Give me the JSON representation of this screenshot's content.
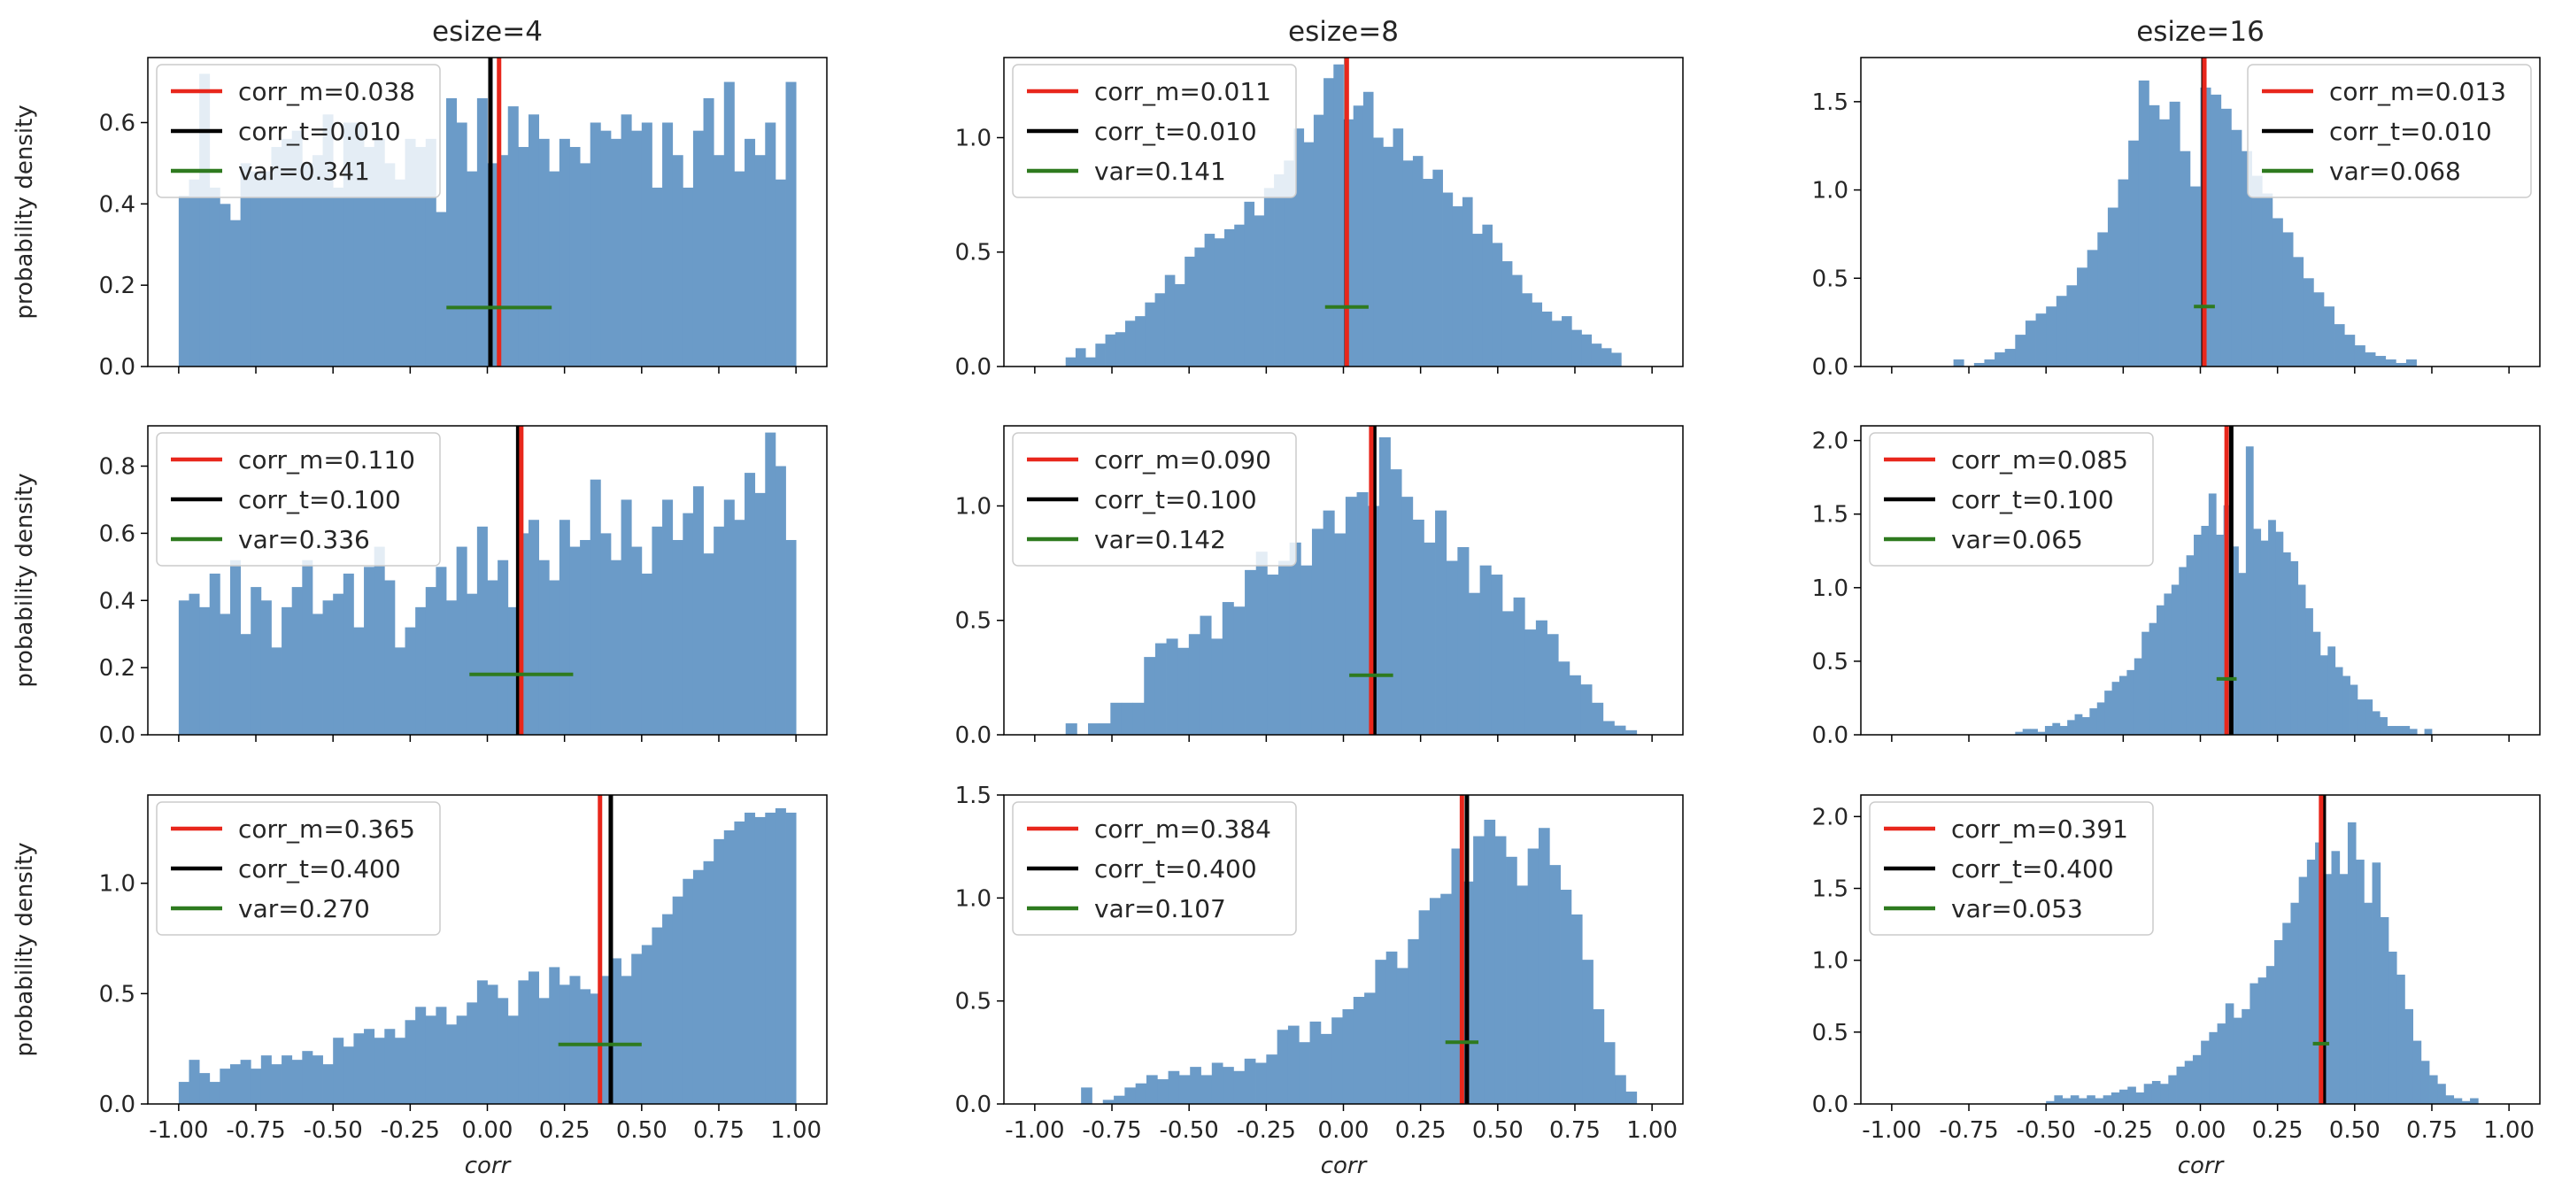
{
  "chart_data": {
    "type": "bar",
    "layout": "3x3 histogram grid, shared x axis per column",
    "columns": [
      "esize=4",
      "esize=8",
      "esize=16"
    ],
    "ylabel": "probability density",
    "xlabel": "corr",
    "xlim": [
      -1.1,
      1.1
    ],
    "x_ticks": [
      -1.0,
      -0.75,
      -0.5,
      -0.25,
      0.0,
      0.25,
      0.5,
      0.75,
      1.0
    ],
    "x_tick_labels": [
      "-1.00",
      "-0.75",
      "-0.50",
      "-0.25",
      "0.00",
      "0.25",
      "0.50",
      "0.75",
      "1.00"
    ],
    "colors": {
      "bars": "#6b9bc8",
      "corr_m": "#e8271c",
      "corr_t": "#000000",
      "var": "#2e7a1f"
    },
    "panels": [
      {
        "row": 0,
        "col": 0,
        "show_xticklabels": false,
        "show_ylabel": true,
        "ylim": [
          0,
          0.76
        ],
        "y_ticks": [
          0,
          0.2,
          0.4,
          0.6
        ],
        "y_tick_labels": [
          "0.0",
          "0.2",
          "0.4",
          "0.6"
        ],
        "bin_range": [
          -1.0,
          1.0
        ],
        "densities": [
          0.42,
          0.46,
          0.72,
          0.44,
          0.4,
          0.36,
          0.5,
          0.48,
          0.48,
          0.54,
          0.56,
          0.58,
          0.5,
          0.52,
          0.62,
          0.44,
          0.6,
          0.6,
          0.54,
          0.56,
          0.5,
          0.46,
          0.56,
          0.54,
          0.56,
          0.38,
          0.66,
          0.6,
          0.48,
          0.66,
          0.5,
          0.52,
          0.64,
          0.54,
          0.62,
          0.56,
          0.48,
          0.56,
          0.54,
          0.5,
          0.6,
          0.58,
          0.56,
          0.62,
          0.58,
          0.6,
          0.44,
          0.6,
          0.52,
          0.44,
          0.58,
          0.66,
          0.52,
          0.7,
          0.48,
          0.56,
          0.52,
          0.6,
          0.46,
          0.7
        ],
        "corr_m": 0.038,
        "corr_t": 0.01,
        "var": 0.341,
        "var_y": 0.145,
        "legend_position": "upper left",
        "legend": [
          "corr_m=0.038",
          "corr_t=0.010",
          "var=0.341"
        ]
      },
      {
        "row": 0,
        "col": 1,
        "show_xticklabels": false,
        "show_ylabel": false,
        "ylim": [
          0,
          1.35
        ],
        "y_ticks": [
          0,
          0.5,
          1.0
        ],
        "y_tick_labels": [
          "0.0",
          "0.5",
          "1.0"
        ],
        "bin_range": [
          -0.9,
          0.9
        ],
        "densities": [
          0.04,
          0.08,
          0.04,
          0.1,
          0.14,
          0.15,
          0.2,
          0.22,
          0.28,
          0.32,
          0.4,
          0.36,
          0.48,
          0.52,
          0.58,
          0.56,
          0.6,
          0.62,
          0.72,
          0.66,
          0.78,
          0.84,
          0.9,
          1.04,
          0.98,
          1.1,
          1.26,
          1.32,
          1.08,
          1.14,
          1.2,
          1.0,
          0.96,
          1.04,
          0.9,
          0.92,
          0.82,
          0.86,
          0.76,
          0.7,
          0.74,
          0.58,
          0.62,
          0.54,
          0.46,
          0.4,
          0.32,
          0.28,
          0.24,
          0.2,
          0.22,
          0.16,
          0.14,
          0.1,
          0.08,
          0.06
        ],
        "corr_m": 0.011,
        "corr_t": 0.01,
        "var": 0.141,
        "var_y": 0.26,
        "legend_position": "upper left",
        "legend": [
          "corr_m=0.011",
          "corr_t=0.010",
          "var=0.141"
        ]
      },
      {
        "row": 0,
        "col": 2,
        "show_xticklabels": false,
        "show_ylabel": false,
        "ylim": [
          0,
          1.75
        ],
        "y_ticks": [
          0,
          0.5,
          1.0,
          1.5
        ],
        "y_tick_labels": [
          "0.0",
          "0.5",
          "1.0",
          "1.5"
        ],
        "bin_range": [
          -0.8,
          0.7
        ],
        "densities": [
          0.04,
          0.0,
          0.02,
          0.04,
          0.08,
          0.1,
          0.18,
          0.26,
          0.3,
          0.34,
          0.4,
          0.46,
          0.56,
          0.66,
          0.76,
          0.9,
          1.06,
          1.28,
          1.62,
          1.48,
          1.4,
          1.5,
          1.22,
          1.02,
          1.58,
          1.54,
          1.46,
          1.34,
          1.22,
          1.08,
          0.98,
          0.84,
          0.76,
          0.62,
          0.5,
          0.42,
          0.34,
          0.24,
          0.18,
          0.12,
          0.08,
          0.06,
          0.04,
          0.02,
          0.04
        ],
        "corr_m": 0.013,
        "corr_t": 0.01,
        "var": 0.068,
        "var_y": 0.34,
        "legend_position": "upper right",
        "legend": [
          "corr_m=0.013",
          "corr_t=0.010",
          "var=0.068"
        ]
      },
      {
        "row": 1,
        "col": 0,
        "show_xticklabels": false,
        "show_ylabel": true,
        "ylim": [
          0,
          0.92
        ],
        "y_ticks": [
          0,
          0.2,
          0.4,
          0.6,
          0.8
        ],
        "y_tick_labels": [
          "0.0",
          "0.2",
          "0.4",
          "0.6",
          "0.8"
        ],
        "bin_range": [
          -1.0,
          1.0
        ],
        "densities": [
          0.4,
          0.42,
          0.38,
          0.48,
          0.36,
          0.52,
          0.3,
          0.44,
          0.4,
          0.26,
          0.38,
          0.44,
          0.52,
          0.36,
          0.4,
          0.42,
          0.48,
          0.32,
          0.5,
          0.56,
          0.46,
          0.26,
          0.32,
          0.38,
          0.44,
          0.5,
          0.4,
          0.56,
          0.42,
          0.62,
          0.46,
          0.52,
          0.38,
          0.6,
          0.64,
          0.52,
          0.46,
          0.64,
          0.56,
          0.58,
          0.76,
          0.6,
          0.52,
          0.7,
          0.56,
          0.48,
          0.62,
          0.7,
          0.58,
          0.66,
          0.74,
          0.54,
          0.62,
          0.7,
          0.64,
          0.78,
          0.72,
          0.9,
          0.8,
          0.58
        ],
        "corr_m": 0.11,
        "corr_t": 0.1,
        "var": 0.336,
        "var_y": 0.18,
        "legend_position": "upper left",
        "legend": [
          "corr_m=0.110",
          "corr_t=0.100",
          "var=0.336"
        ]
      },
      {
        "row": 1,
        "col": 1,
        "show_xticklabels": false,
        "show_ylabel": false,
        "ylim": [
          0,
          1.35
        ],
        "y_ticks": [
          0,
          0.5,
          1.0
        ],
        "y_tick_labels": [
          "0.0",
          "0.5",
          "1.0"
        ],
        "bin_range": [
          -0.9,
          0.95
        ],
        "densities": [
          0.05,
          0.0,
          0.05,
          0.05,
          0.14,
          0.14,
          0.14,
          0.34,
          0.4,
          0.42,
          0.38,
          0.44,
          0.52,
          0.42,
          0.58,
          0.56,
          0.72,
          0.8,
          0.7,
          0.76,
          0.84,
          0.74,
          0.9,
          0.98,
          0.88,
          1.04,
          1.06,
          1.0,
          1.3,
          1.16,
          1.04,
          0.94,
          0.84,
          0.98,
          0.76,
          0.82,
          0.62,
          0.74,
          0.7,
          0.54,
          0.6,
          0.46,
          0.5,
          0.44,
          0.32,
          0.26,
          0.22,
          0.14,
          0.06,
          0.04,
          0.02
        ],
        "corr_m": 0.09,
        "corr_t": 0.1,
        "var": 0.142,
        "var_y": 0.26,
        "legend_position": "upper left",
        "legend": [
          "corr_m=0.090",
          "corr_t=0.100",
          "var=0.142"
        ]
      },
      {
        "row": 1,
        "col": 2,
        "show_xticklabels": false,
        "show_ylabel": false,
        "ylim": [
          0,
          2.1
        ],
        "y_ticks": [
          0,
          0.5,
          1.0,
          1.5,
          2.0
        ],
        "y_tick_labels": [
          "0.0",
          "0.5",
          "1.0",
          "1.5",
          "2.0"
        ],
        "bin_range": [
          -0.6,
          0.75
        ],
        "densities": [
          0.02,
          0.04,
          0.04,
          0.02,
          0.06,
          0.08,
          0.06,
          0.1,
          0.14,
          0.12,
          0.18,
          0.22,
          0.3,
          0.36,
          0.4,
          0.44,
          0.52,
          0.7,
          0.76,
          0.88,
          0.96,
          1.02,
          1.14,
          1.22,
          1.36,
          1.42,
          1.64,
          1.36,
          1.56,
          1.28,
          1.1,
          1.96,
          1.4,
          1.32,
          1.46,
          1.38,
          1.24,
          1.18,
          1.02,
          0.86,
          0.7,
          0.54,
          0.6,
          0.46,
          0.4,
          0.34,
          0.24,
          0.24,
          0.16,
          0.12,
          0.06,
          0.06,
          0.06,
          0.04,
          0.0,
          0.04
        ],
        "corr_m": 0.085,
        "corr_t": 0.1,
        "var": 0.065,
        "var_y": 0.38,
        "legend_position": "upper left",
        "legend": [
          "corr_m=0.085",
          "corr_t=0.100",
          "var=0.065"
        ]
      },
      {
        "row": 2,
        "col": 0,
        "show_xticklabels": true,
        "show_ylabel": true,
        "ylim": [
          0,
          1.4
        ],
        "y_ticks": [
          0,
          0.5,
          1.0
        ],
        "y_tick_labels": [
          "0.0",
          "0.5",
          "1.0"
        ],
        "bin_range": [
          -1.0,
          1.0
        ],
        "densities": [
          0.1,
          0.2,
          0.14,
          0.1,
          0.16,
          0.18,
          0.2,
          0.16,
          0.22,
          0.18,
          0.22,
          0.2,
          0.24,
          0.22,
          0.18,
          0.3,
          0.26,
          0.32,
          0.34,
          0.3,
          0.34,
          0.3,
          0.38,
          0.44,
          0.4,
          0.44,
          0.36,
          0.4,
          0.46,
          0.56,
          0.54,
          0.48,
          0.4,
          0.56,
          0.6,
          0.48,
          0.62,
          0.54,
          0.58,
          0.52,
          0.5,
          0.58,
          0.66,
          0.58,
          0.68,
          0.72,
          0.8,
          0.86,
          0.94,
          1.02,
          1.06,
          1.1,
          1.2,
          1.24,
          1.28,
          1.32,
          1.3,
          1.32,
          1.34,
          1.32
        ],
        "corr_m": 0.365,
        "corr_t": 0.4,
        "var": 0.27,
        "var_y": 0.27,
        "legend_position": "upper left",
        "legend": [
          "corr_m=0.365",
          "corr_t=0.400",
          "var=0.270"
        ]
      },
      {
        "row": 2,
        "col": 1,
        "show_xticklabels": true,
        "show_ylabel": false,
        "ylim": [
          0,
          1.5
        ],
        "y_ticks": [
          0,
          0.5,
          1.0,
          1.5
        ],
        "y_tick_labels": [
          "0.0",
          "0.5",
          "1.0",
          "1.5"
        ],
        "bin_range": [
          -0.85,
          0.95
        ],
        "densities": [
          0.08,
          0.0,
          0.02,
          0.04,
          0.08,
          0.1,
          0.14,
          0.12,
          0.16,
          0.14,
          0.18,
          0.14,
          0.2,
          0.18,
          0.16,
          0.22,
          0.2,
          0.24,
          0.36,
          0.38,
          0.3,
          0.4,
          0.34,
          0.42,
          0.46,
          0.52,
          0.54,
          0.7,
          0.74,
          0.66,
          0.8,
          0.94,
          1.0,
          1.02,
          1.24,
          1.08,
          1.3,
          1.38,
          1.3,
          1.2,
          1.06,
          1.24,
          1.34,
          1.16,
          1.04,
          0.92,
          0.7,
          0.46,
          0.3,
          0.14,
          0.06
        ],
        "corr_m": 0.384,
        "corr_t": 0.4,
        "var": 0.107,
        "var_y": 0.3,
        "legend_position": "upper left",
        "legend": [
          "corr_m=0.384",
          "corr_t=0.400",
          "var=0.107"
        ]
      },
      {
        "row": 2,
        "col": 2,
        "show_xticklabels": true,
        "show_ylabel": false,
        "ylim": [
          0,
          2.15
        ],
        "y_ticks": [
          0,
          0.5,
          1.0,
          1.5,
          2.0
        ],
        "y_tick_labels": [
          "0.0",
          "0.5",
          "1.0",
          "1.5",
          "2.0"
        ],
        "bin_range": [
          -0.5,
          0.9
        ],
        "densities": [
          0.02,
          0.06,
          0.04,
          0.06,
          0.04,
          0.06,
          0.04,
          0.06,
          0.08,
          0.1,
          0.12,
          0.08,
          0.14,
          0.16,
          0.14,
          0.2,
          0.26,
          0.3,
          0.34,
          0.44,
          0.5,
          0.56,
          0.7,
          0.6,
          0.66,
          0.84,
          0.88,
          0.96,
          1.14,
          1.26,
          1.4,
          1.58,
          1.7,
          1.82,
          1.6,
          1.76,
          1.6,
          1.96,
          1.7,
          1.4,
          1.68,
          1.3,
          1.06,
          0.9,
          0.66,
          0.44,
          0.3,
          0.2,
          0.14,
          0.06,
          0.04,
          0.02,
          0.04
        ],
        "corr_m": 0.391,
        "corr_t": 0.4,
        "var": 0.053,
        "var_y": 0.42,
        "legend_position": "upper left",
        "legend": [
          "corr_m=0.391",
          "corr_t=0.400",
          "var=0.053"
        ]
      }
    ]
  }
}
